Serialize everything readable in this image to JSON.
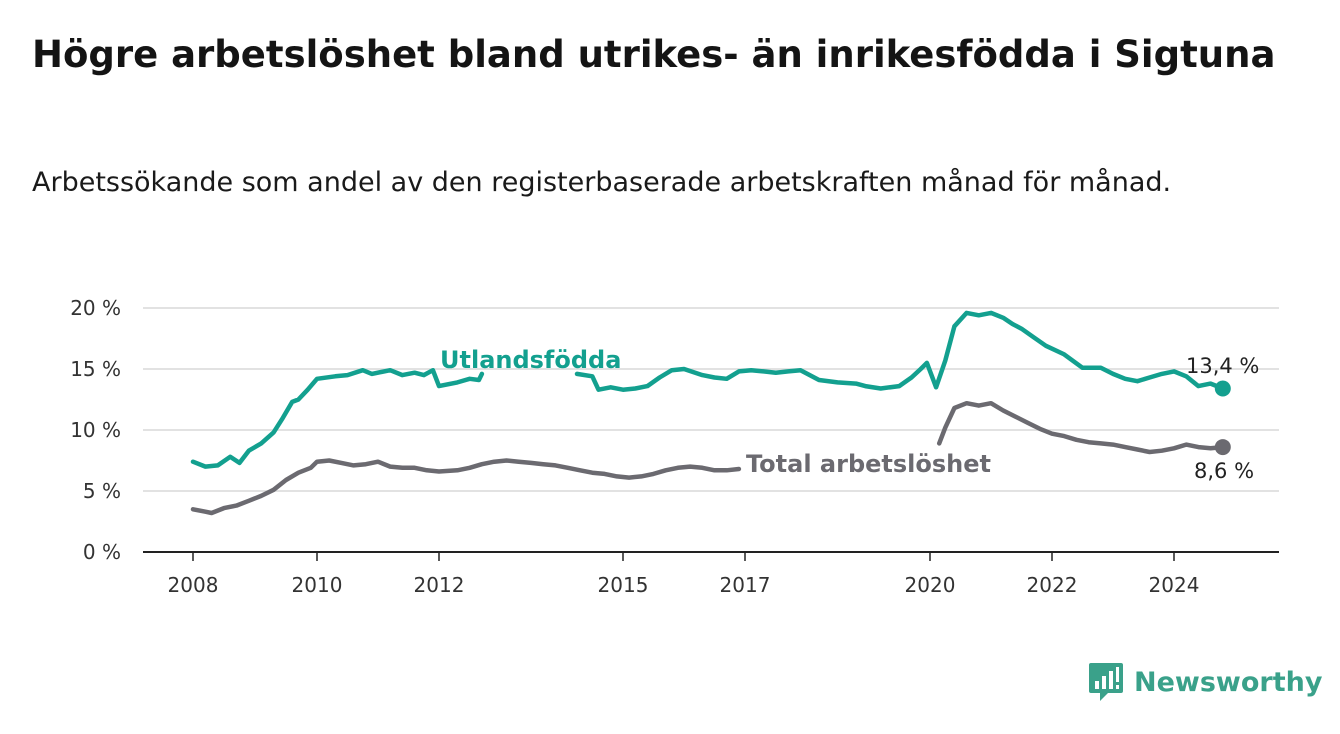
{
  "title": "Högre arbetslöshet bland utrikes- än inrikesfödda i Sigtuna",
  "subtitle": "Arbetssökande som andel av den registerbaserade arbetskraften månad för månad.",
  "brand": {
    "name": "Newsworthy",
    "color": "#3aa18a"
  },
  "chart_data": {
    "type": "line",
    "title": "Högre arbetslöshet bland utrikes- än inrikesfödda i Sigtuna",
    "subtitle": "Arbetssökande som andel av den registerbaserade arbetskraften månad för månad.",
    "xlabel": "",
    "ylabel": "",
    "xlim": [
      2008,
      2024.9
    ],
    "ylim": [
      0,
      20
    ],
    "y_ticks": [
      0,
      5,
      10,
      15,
      20
    ],
    "y_tick_labels": [
      "0 %",
      "5 %",
      "10 %",
      "15 %",
      "20 %"
    ],
    "x_ticks": [
      2008,
      2010,
      2012,
      2015,
      2017,
      2020,
      2022,
      2024
    ],
    "x_tick_labels": [
      "2008",
      "2010",
      "2012",
      "2015",
      "2017",
      "2020",
      "2022",
      "2024"
    ],
    "grid": "horizontal",
    "series": [
      {
        "name": "Utlandsfödda",
        "color": "#13a08f",
        "end_label": "13,4 %",
        "x": [
          2008.0,
          2008.2,
          2008.4,
          2008.6,
          2008.75,
          2008.9,
          2009.1,
          2009.3,
          2009.45,
          2009.6,
          2009.7,
          2009.85,
          2010.0,
          2010.3,
          2010.5,
          2010.75,
          2010.9,
          2011.2,
          2011.4,
          2011.6,
          2011.75,
          2011.9,
          2012.0,
          2012.3,
          2012.5,
          2012.65,
          2012.7,
          2014.25,
          2014.5,
          2014.6,
          2014.8,
          2015.0,
          2015.2,
          2015.4,
          2015.6,
          2015.8,
          2016.0,
          2016.3,
          2016.5,
          2016.7,
          2016.9,
          2017.1,
          2017.3,
          2017.5,
          2017.7,
          2017.9,
          2018.2,
          2018.5,
          2018.8,
          2018.95,
          2019.2,
          2019.5,
          2019.7,
          2019.85,
          2019.95,
          2020.1,
          2020.25,
          2020.4,
          2020.6,
          2020.8,
          2021.0,
          2021.2,
          2021.35,
          2021.5,
          2021.7,
          2021.9,
          2022.2,
          2022.5,
          2022.8,
          2023.0,
          2023.2,
          2023.4,
          2023.6,
          2023.8,
          2024.0,
          2024.2,
          2024.4,
          2024.6,
          2024.8
        ],
        "y": [
          7.4,
          7.0,
          7.1,
          7.8,
          7.3,
          8.3,
          8.9,
          9.8,
          11.0,
          12.3,
          12.5,
          13.3,
          14.2,
          14.4,
          14.5,
          14.9,
          14.6,
          14.9,
          14.5,
          14.7,
          14.5,
          14.9,
          13.6,
          13.9,
          14.2,
          14.1,
          14.6,
          14.6,
          14.4,
          13.3,
          13.5,
          13.3,
          13.4,
          13.6,
          14.3,
          14.9,
          15.0,
          14.5,
          14.3,
          14.2,
          14.8,
          14.9,
          14.8,
          14.7,
          14.8,
          14.9,
          14.1,
          13.9,
          13.8,
          13.6,
          13.4,
          13.6,
          14.3,
          15.0,
          15.5,
          13.5,
          15.7,
          18.5,
          19.6,
          19.4,
          19.6,
          19.2,
          18.7,
          18.3,
          17.6,
          16.9,
          16.2,
          15.1,
          15.1,
          14.6,
          14.2,
          14.0,
          14.3,
          14.6,
          14.8,
          14.4,
          13.6,
          13.8,
          13.4
        ],
        "gaps_after_x": [
          2012.7
        ]
      },
      {
        "name": "Total arbetslöshet",
        "color": "#6b6a70",
        "end_label": "8,6 %",
        "x": [
          2008.0,
          2008.2,
          2008.3,
          2008.5,
          2008.7,
          2008.9,
          2009.1,
          2009.3,
          2009.5,
          2009.7,
          2009.9,
          2010.0,
          2010.2,
          2010.4,
          2010.6,
          2010.8,
          2011.0,
          2011.2,
          2011.4,
          2011.6,
          2011.8,
          2012.0,
          2012.3,
          2012.5,
          2012.7,
          2012.9,
          2013.1,
          2013.3,
          2013.5,
          2013.7,
          2013.9,
          2014.1,
          2014.3,
          2014.5,
          2014.7,
          2014.9,
          2015.1,
          2015.3,
          2015.5,
          2015.7,
          2015.9,
          2016.1,
          2016.3,
          2016.5,
          2016.7,
          2016.9,
          2020.15,
          2020.25,
          2020.4,
          2020.6,
          2020.8,
          2021.0,
          2021.2,
          2021.4,
          2021.6,
          2021.8,
          2022.0,
          2022.2,
          2022.4,
          2022.6,
          2022.8,
          2023.0,
          2023.2,
          2023.4,
          2023.6,
          2023.8,
          2024.0,
          2024.2,
          2024.4,
          2024.6,
          2024.8
        ],
        "y": [
          3.5,
          3.3,
          3.2,
          3.6,
          3.8,
          4.2,
          4.6,
          5.1,
          5.9,
          6.5,
          6.9,
          7.4,
          7.5,
          7.3,
          7.1,
          7.2,
          7.4,
          7.0,
          6.9,
          6.9,
          6.7,
          6.6,
          6.7,
          6.9,
          7.2,
          7.4,
          7.5,
          7.4,
          7.3,
          7.2,
          7.1,
          6.9,
          6.7,
          6.5,
          6.4,
          6.2,
          6.1,
          6.2,
          6.4,
          6.7,
          6.9,
          7.0,
          6.9,
          6.7,
          6.7,
          6.8,
          8.9,
          10.2,
          11.8,
          12.2,
          12.0,
          12.2,
          11.6,
          11.1,
          10.6,
          10.1,
          9.7,
          9.5,
          9.2,
          9.0,
          8.9,
          8.8,
          8.6,
          8.4,
          8.2,
          8.3,
          8.5,
          8.8,
          8.6,
          8.5,
          8.6
        ],
        "gaps_after_x": [
          2016.9
        ]
      }
    ]
  }
}
